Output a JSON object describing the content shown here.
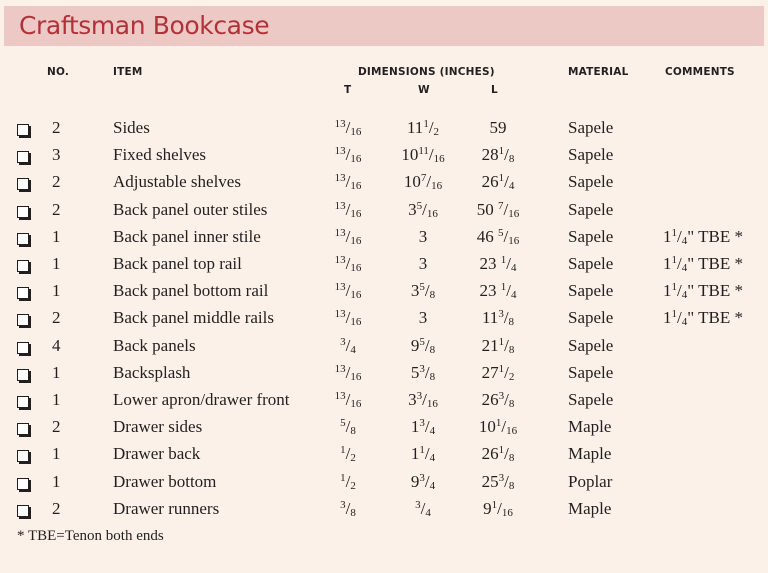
{
  "title": "Craftsman Bookcase",
  "headers": {
    "no": "NO.",
    "item": "ITEM",
    "dimensions": "DIMENSIONS (INCHES)",
    "t": "T",
    "w": "W",
    "l": "L",
    "material": "MATERIAL",
    "comments": "COMMENTS"
  },
  "rows": [
    {
      "no": "2",
      "item": "Sides",
      "t": [
        "",
        "13",
        "16"
      ],
      "w": [
        "11",
        "1",
        "2"
      ],
      "l": [
        "59",
        "",
        ""
      ],
      "material": "Sapele",
      "comment": [
        "",
        "",
        "",
        ""
      ]
    },
    {
      "no": "3",
      "item": "Fixed shelves",
      "t": [
        "",
        "13",
        "16"
      ],
      "w": [
        "10",
        "11",
        "16"
      ],
      "l": [
        "28",
        "1",
        "8"
      ],
      "material": "Sapele",
      "comment": [
        "",
        "",
        "",
        ""
      ]
    },
    {
      "no": "2",
      "item": "Adjustable shelves",
      "t": [
        "",
        "13",
        "16"
      ],
      "w": [
        "10",
        "7",
        "16"
      ],
      "l": [
        "26",
        "1",
        "4"
      ],
      "material": "Sapele",
      "comment": [
        "",
        "",
        "",
        ""
      ]
    },
    {
      "no": "2",
      "item": "Back panel outer stiles",
      "t": [
        "",
        "13",
        "16"
      ],
      "w": [
        "3",
        "5",
        "16"
      ],
      "l": [
        "50 ",
        "7",
        "16"
      ],
      "material": "Sapele",
      "comment": [
        "",
        "",
        "",
        ""
      ]
    },
    {
      "no": "1",
      "item": "Back panel inner stile",
      "t": [
        "",
        "13",
        "16"
      ],
      "w": [
        "3",
        "",
        ""
      ],
      "l": [
        "46 ",
        "5",
        "16"
      ],
      "material": "Sapele",
      "comment": [
        "1",
        "1",
        "4",
        "\" TBE *"
      ]
    },
    {
      "no": "1",
      "item": "Back panel top rail",
      "t": [
        "",
        "13",
        "16"
      ],
      "w": [
        "3",
        "",
        ""
      ],
      "l": [
        "23 ",
        "1",
        "4"
      ],
      "material": "Sapele",
      "comment": [
        "1",
        "1",
        "4",
        "\" TBE *"
      ]
    },
    {
      "no": "1",
      "item": "Back panel bottom rail",
      "t": [
        "",
        "13",
        "16"
      ],
      "w": [
        "3",
        "5",
        "8"
      ],
      "l": [
        "23 ",
        "1",
        "4"
      ],
      "material": "Sapele",
      "comment": [
        "1",
        "1",
        "4",
        "\" TBE *"
      ]
    },
    {
      "no": "2",
      "item": "Back panel middle rails",
      "t": [
        "",
        "13",
        "16"
      ],
      "w": [
        "3",
        "",
        ""
      ],
      "l": [
        "11",
        "3",
        "8"
      ],
      "material": "Sapele",
      "comment": [
        "1",
        "1",
        "4",
        "\" TBE *"
      ]
    },
    {
      "no": "4",
      "item": "Back panels",
      "t": [
        "",
        "3",
        "4"
      ],
      "w": [
        "9",
        "5",
        "8"
      ],
      "l": [
        "21",
        "1",
        "8"
      ],
      "material": "Sapele",
      "comment": [
        "",
        "",
        "",
        ""
      ]
    },
    {
      "no": "1",
      "item": "Backsplash",
      "t": [
        "",
        "13",
        "16"
      ],
      "w": [
        "5",
        "3",
        "8"
      ],
      "l": [
        "27",
        "1",
        "2"
      ],
      "material": "Sapele",
      "comment": [
        "",
        "",
        "",
        ""
      ]
    },
    {
      "no": "1",
      "item": "Lower apron/drawer front",
      "t": [
        "",
        "13",
        "16"
      ],
      "w": [
        "3",
        "3",
        "16"
      ],
      "l": [
        "26",
        "3",
        "8"
      ],
      "material": "Sapele",
      "comment": [
        "",
        "",
        "",
        ""
      ]
    },
    {
      "no": "2",
      "item": "Drawer sides",
      "t": [
        "",
        "5",
        "8"
      ],
      "w": [
        "1",
        "3",
        "4"
      ],
      "l": [
        "10",
        "1",
        "16"
      ],
      "material": "Maple",
      "comment": [
        "",
        "",
        "",
        ""
      ]
    },
    {
      "no": "1",
      "item": "Drawer back",
      "t": [
        "",
        "1",
        "2"
      ],
      "w": [
        "1",
        "1",
        "4"
      ],
      "l": [
        "26",
        "1",
        "8"
      ],
      "material": "Maple",
      "comment": [
        "",
        "",
        "",
        ""
      ]
    },
    {
      "no": "1",
      "item": "Drawer bottom",
      "t": [
        "",
        "1",
        "2"
      ],
      "w": [
        "9",
        "3",
        "4"
      ],
      "l": [
        "25",
        "3",
        "8"
      ],
      "material": "Poplar",
      "comment": [
        "",
        "",
        "",
        ""
      ]
    },
    {
      "no": "2",
      "item": "Drawer runners",
      "t": [
        "",
        "3",
        "8"
      ],
      "w": [
        "",
        "3",
        "4"
      ],
      "l": [
        "9",
        "1",
        "16"
      ],
      "material": "Maple",
      "comment": [
        "",
        "",
        "",
        ""
      ]
    }
  ],
  "footnote": "* TBE=Tenon both ends",
  "colors": {
    "title_bar": "#ecc9c5",
    "title_text": "#b0323a",
    "background": "#fbf1e8"
  }
}
